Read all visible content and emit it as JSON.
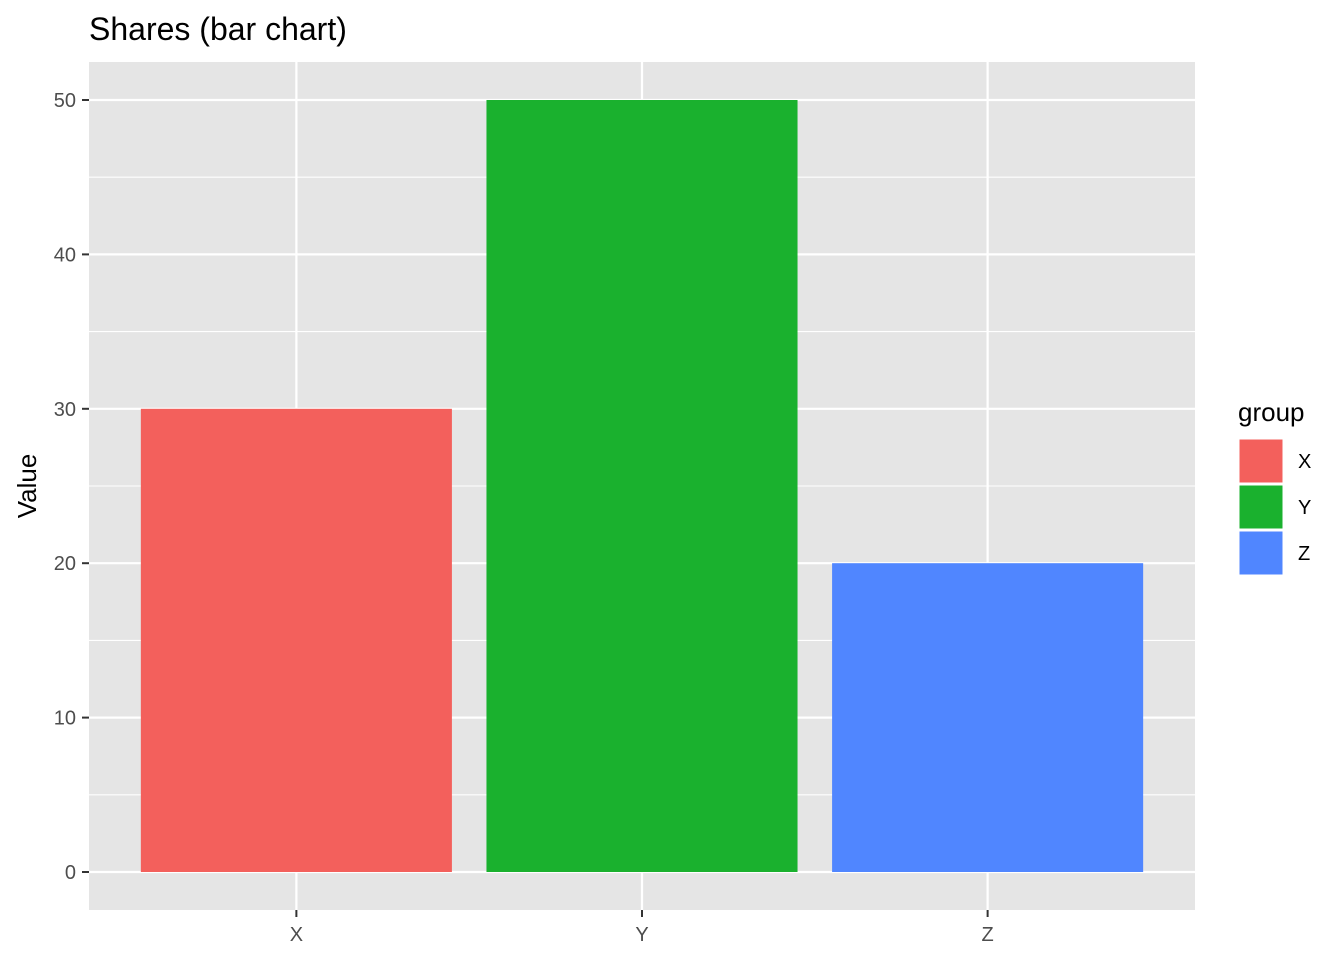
{
  "chart_data": {
    "type": "bar",
    "title": "Shares (bar chart)",
    "xlabel": "",
    "ylabel": "Value",
    "categories": [
      "X",
      "Y",
      "Z"
    ],
    "values": [
      30,
      50,
      20
    ],
    "colors": [
      "#F3605C",
      "#1AB12E",
      "#5086FF"
    ],
    "ylim": [
      0,
      52.5
    ],
    "yticks": [
      0,
      10,
      20,
      30,
      40,
      50
    ],
    "grid": true,
    "panel_background": "#E5E5E5",
    "legend": {
      "title": "group",
      "placement": "right",
      "entries": [
        "X",
        "Y",
        "Z"
      ]
    }
  }
}
